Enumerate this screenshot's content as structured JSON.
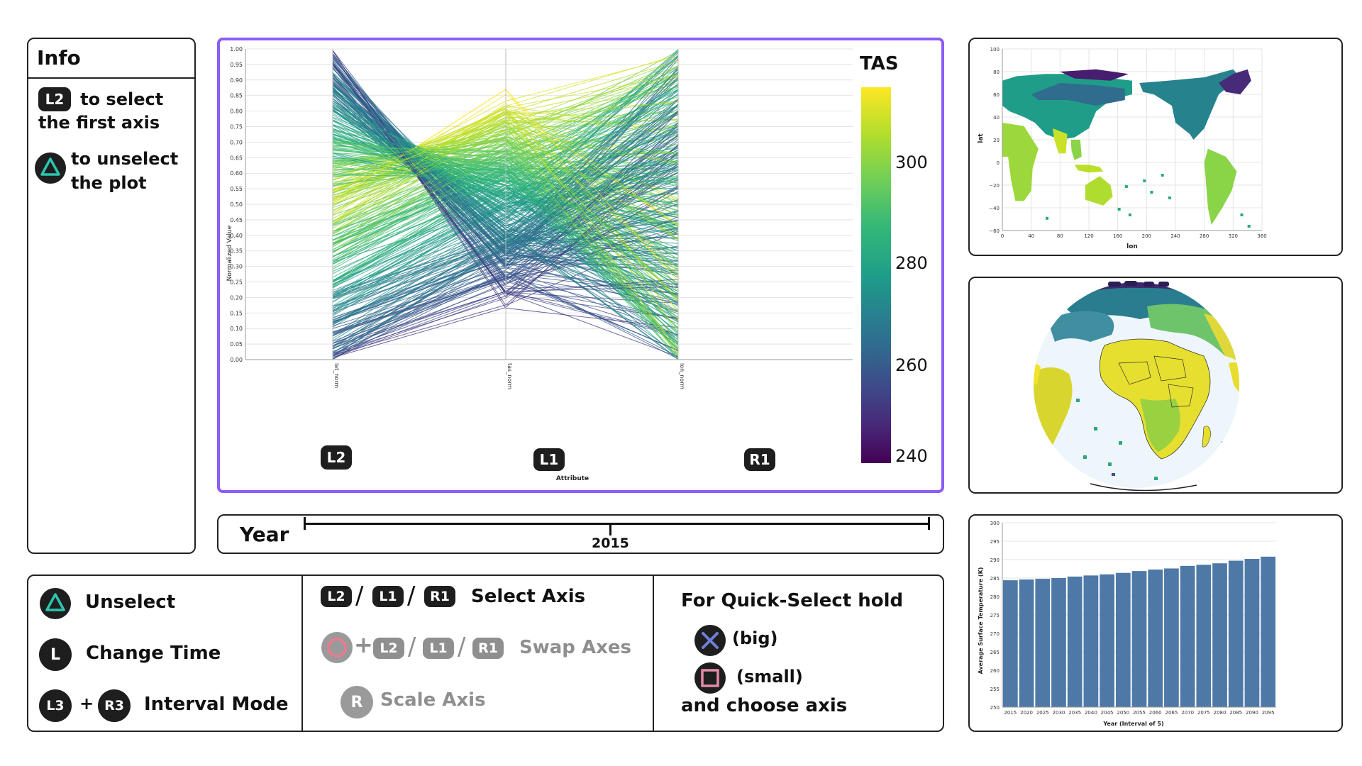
{
  "info": {
    "title": "Info",
    "l2_button": "L2",
    "select_first_axis": [
      "to select",
      "the first axis"
    ],
    "triangle_icon": "triangle-button-icon",
    "unselect_plot": [
      "to unselect",
      "the plot"
    ]
  },
  "parallel_plot": {
    "ylabel": "Normalized Value",
    "xlabel": "Attribute",
    "y_ticks": [
      "0.00",
      "0.05",
      "0.10",
      "0.15",
      "0.20",
      "0.25",
      "0.30",
      "0.35",
      "0.40",
      "0.45",
      "0.50",
      "0.55",
      "0.60",
      "0.65",
      "0.70",
      "0.75",
      "0.80",
      "0.85",
      "0.90",
      "0.95",
      "1.00"
    ],
    "axes": [
      {
        "attr": "lat_norm",
        "button": "L2"
      },
      {
        "attr": "tas_norm",
        "button": "L1"
      },
      {
        "attr": "lon_norm",
        "button": "R1"
      }
    ],
    "colorbar": {
      "title": "TAS",
      "ticks": [
        "300",
        "280",
        "260",
        "240"
      ],
      "range": [
        237,
        316
      ],
      "colormap": "viridis"
    },
    "highlight_color": "#8b5cf6"
  },
  "year_slider": {
    "label": "Year",
    "value": "2015"
  },
  "controls": {
    "col1": [
      {
        "icon": "triangle-button-icon",
        "label": "Unselect"
      },
      {
        "button": "L",
        "label": "Change Time"
      },
      {
        "buttons": [
          "L3",
          "R3"
        ],
        "plus": "+",
        "label": "Interval Mode"
      }
    ],
    "col2": {
      "select_buttons": [
        "L2",
        "L1",
        "R1"
      ],
      "slash": "/",
      "select_label": "Select Axis",
      "swap_icon": "circle-button-icon",
      "plus": "+",
      "swap_buttons": [
        "L2",
        "L1",
        "R1"
      ],
      "swap_label": "Swap Axes",
      "scale_button": "R",
      "scale_label": "Scale Axis"
    },
    "col3": {
      "title": "For Quick-Select hold",
      "big_icon": "cross-button-icon",
      "big_label": "(big)",
      "small_icon": "square-button-icon",
      "small_label": "(small)",
      "footer": "and choose axis"
    }
  },
  "map": {
    "xlabel": "lon",
    "ylabel": "lat",
    "x_ticks": [
      "0",
      "40",
      "80",
      "120",
      "160",
      "200",
      "240",
      "280",
      "320",
      "360"
    ],
    "y_ticks": [
      "100",
      "80",
      "60",
      "40",
      "20",
      "0",
      "−20",
      "−40",
      "−60"
    ]
  },
  "globe": {
    "icon": "globe-orthographic-map"
  },
  "chart_data": {
    "type": "bar",
    "categories": [
      "2015",
      "2020",
      "2025",
      "2030",
      "2035",
      "2040",
      "2045",
      "2050",
      "2055",
      "2060",
      "2065",
      "2070",
      "2075",
      "2080",
      "2085",
      "2090",
      "2095"
    ],
    "values": [
      284.4,
      284.6,
      284.8,
      285.0,
      285.4,
      285.7,
      286.0,
      286.4,
      286.9,
      287.3,
      287.6,
      288.3,
      288.6,
      289.0,
      289.7,
      290.2,
      290.8
    ],
    "xlabel": "Year (Interval of 5)",
    "ylabel": "Average Surface Temperature (K)",
    "ylim": [
      250,
      300
    ],
    "y_ticks": [
      "250",
      "255",
      "260",
      "265",
      "270",
      "275",
      "280",
      "285",
      "290",
      "295",
      "300"
    ],
    "bar_color": "#4e79a7"
  }
}
